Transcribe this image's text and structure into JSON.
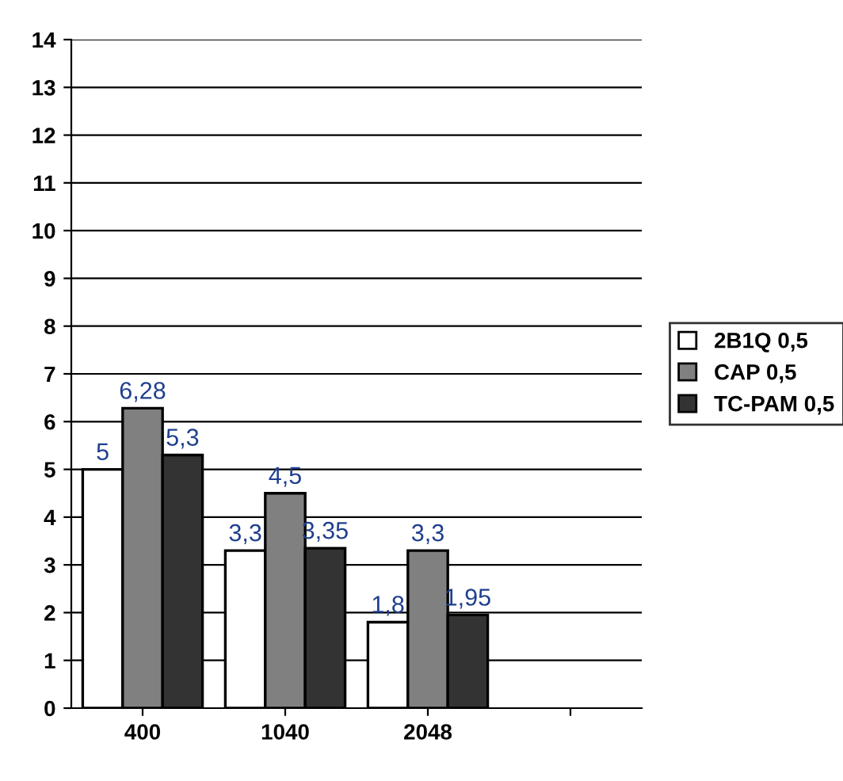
{
  "chart_data": {
    "type": "bar",
    "categories": [
      "400",
      "1040",
      "2048",
      null
    ],
    "series": [
      {
        "name": "2B1Q 0,5",
        "color": "#ffffff",
        "values": [
          5,
          3.3,
          1.8,
          null
        ],
        "value_labels": [
          "5",
          "3,3",
          "1,8",
          null
        ]
      },
      {
        "name": "CAP 0,5",
        "color": "#808080",
        "values": [
          6.28,
          4.5,
          3.3,
          null
        ],
        "value_labels": [
          "6,28",
          "4,5",
          "3,3",
          null
        ]
      },
      {
        "name": "TC-PAM 0,5",
        "color": "#333333",
        "values": [
          5.3,
          3.35,
          1.95,
          null
        ],
        "value_labels": [
          "5,3",
          "3,35",
          "1,95",
          null
        ]
      }
    ],
    "ylim": [
      0,
      14
    ],
    "yticks": [
      0,
      1,
      2,
      3,
      4,
      5,
      6,
      7,
      8,
      9,
      10,
      11,
      12,
      13,
      14
    ],
    "grid": "y",
    "legend": "right"
  }
}
